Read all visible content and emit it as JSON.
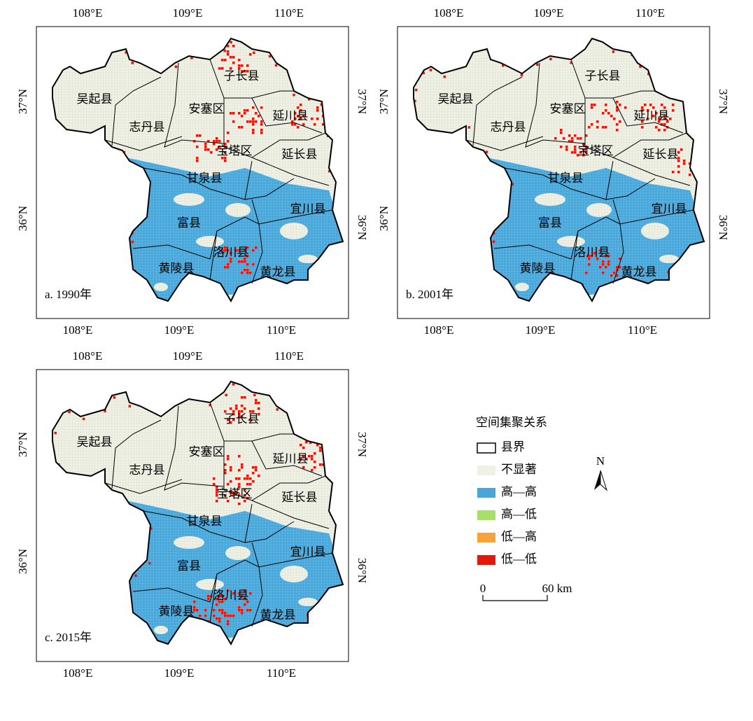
{
  "panels": [
    {
      "label": "a. 1990年",
      "top_ticks": [
        "108°E",
        "109°E",
        "110°E"
      ],
      "bottom_ticks": [
        "108°E",
        "109°E",
        "110°E"
      ],
      "left_ticks": [
        "37°N",
        "36°N"
      ],
      "right_ticks": [
        "37°N",
        "36°N"
      ],
      "counties": [
        "吴起县",
        "志丹县",
        "安塞区",
        "子长县",
        "延川县",
        "宝塔区",
        "延长县",
        "甘泉县",
        "宜川县",
        "富县",
        "洛川县",
        "黄陵县",
        "黄龙县"
      ]
    },
    {
      "label": "b. 2001年",
      "top_ticks": [
        "108°E",
        "109°E",
        "110°E"
      ],
      "bottom_ticks": [
        "108°E",
        "109°E",
        "110°E"
      ],
      "left_ticks": [
        "37°N",
        "36°N"
      ],
      "right_ticks": [
        "37°N",
        "36°N"
      ],
      "counties": [
        "吴起县",
        "志丹县",
        "安塞区",
        "子长县",
        "延川县",
        "宝塔区",
        "延长县",
        "甘泉县",
        "宜川县",
        "富县",
        "洛川县",
        "黄陵县",
        "黄龙县"
      ]
    },
    {
      "label": "c. 2015年",
      "top_ticks": [
        "108°E",
        "109°E",
        "110°E"
      ],
      "bottom_ticks": [
        "108°E",
        "109°E",
        "110°E"
      ],
      "left_ticks": [
        "37°N",
        "36°N"
      ],
      "right_ticks": [
        "37°N",
        "36°N"
      ],
      "counties": [
        "吴起县",
        "志丹县",
        "安塞区",
        "子长县",
        "延川县",
        "宝塔区",
        "延长县",
        "甘泉县",
        "宜川县",
        "富县",
        "洛川县",
        "黄陵县",
        "黄龙县"
      ]
    }
  ],
  "legend": {
    "title": "空间集聚关系",
    "items": [
      "县界",
      "不显著",
      "高—高",
      "高—低",
      "低—高",
      "低—低"
    ]
  },
  "scale": {
    "start": "0",
    "end": "60 km"
  },
  "north": "N"
}
